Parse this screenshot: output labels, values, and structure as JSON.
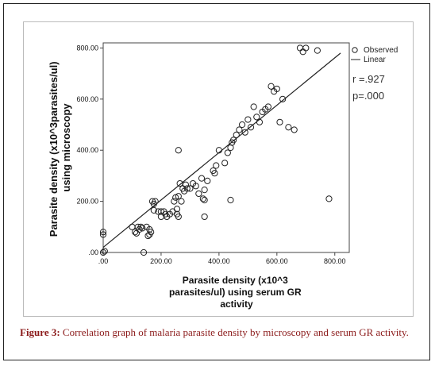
{
  "caption": {
    "label": "Figure 3:",
    "text": "Correlation graph of malaria parasite density by microscopy and serum GR activity."
  },
  "stats": {
    "r_text": "r =.927",
    "p_text": "p=.000"
  },
  "legend": {
    "observed": "Observed",
    "linear": "Linear"
  },
  "colors": {
    "points": "#222222",
    "line": "#222222",
    "caption": "#8b1a1a"
  },
  "chart_data": {
    "type": "scatter",
    "title": "",
    "xlabel_lines": [
      "Parasite density (x10^3",
      "parasites/ul) using serum GR",
      "activity"
    ],
    "ylabel_lines": [
      "Parasite density (x10^3parasites/ul)",
      "using microscopy"
    ],
    "xlim": [
      0,
      850
    ],
    "ylim": [
      0,
      820
    ],
    "x_ticks": [
      0,
      200,
      400,
      600,
      800
    ],
    "x_tick_labels": [
      ".00",
      "200.00",
      "400.00",
      "600.00",
      "800.00"
    ],
    "y_ticks": [
      0,
      200,
      400,
      600,
      800
    ],
    "y_tick_labels": [
      ".00",
      "200.00",
      "400.00",
      "600.00",
      "800.00"
    ],
    "fit_line": {
      "name": "Linear",
      "x": [
        0,
        820
      ],
      "y": [
        20,
        780
      ]
    },
    "series": [
      {
        "name": "Observed",
        "marker": "open-circle",
        "x": [
          0,
          0,
          0,
          5,
          100,
          110,
          115,
          120,
          125,
          130,
          135,
          140,
          150,
          155,
          160,
          160,
          165,
          170,
          175,
          175,
          180,
          190,
          200,
          200,
          210,
          215,
          220,
          230,
          240,
          245,
          250,
          255,
          255,
          260,
          260,
          265,
          270,
          275,
          280,
          285,
          290,
          300,
          310,
          320,
          330,
          340,
          345,
          350,
          350,
          360,
          380,
          385,
          390,
          400,
          420,
          430,
          440,
          445,
          450,
          460,
          470,
          480,
          490,
          500,
          510,
          520,
          530,
          540,
          550,
          560,
          570,
          580,
          590,
          600,
          610,
          620,
          640,
          660,
          680,
          690,
          700,
          740,
          780,
          260,
          350,
          440
        ],
        "y": [
          80,
          70,
          0,
          5,
          100,
          80,
          75,
          100,
          90,
          100,
          95,
          0,
          100,
          65,
          90,
          70,
          80,
          200,
          165,
          190,
          200,
          160,
          140,
          160,
          160,
          150,
          140,
          150,
          160,
          200,
          215,
          170,
          150,
          220,
          140,
          270,
          200,
          250,
          240,
          265,
          250,
          250,
          270,
          260,
          230,
          290,
          210,
          140,
          245,
          280,
          320,
          310,
          340,
          400,
          350,
          390,
          410,
          430,
          440,
          460,
          480,
          500,
          470,
          520,
          490,
          570,
          530,
          510,
          550,
          560,
          570,
          650,
          630,
          640,
          510,
          600,
          490,
          480,
          800,
          785,
          800,
          790,
          210,
          400,
          205,
          205
        ]
      }
    ]
  }
}
